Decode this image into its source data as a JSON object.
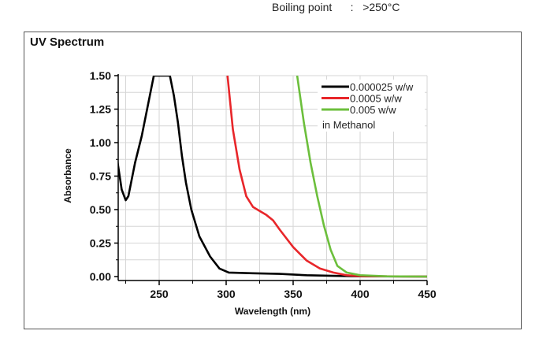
{
  "header_text": {
    "label": "Boiling point",
    "sep": ":",
    "value": ">250°C"
  },
  "chart_data": {
    "type": "line",
    "title": "UV Spectrum",
    "xlabel": "Wavelength (nm)",
    "ylabel": "Absorbance",
    "xlim": [
      217,
      450
    ],
    "ylim": [
      0,
      1.5
    ],
    "xticks": [
      "250",
      "300",
      "350",
      "400",
      "450"
    ],
    "xtick_values": [
      250,
      300,
      350,
      400,
      450
    ],
    "yticks": [
      "0.00",
      "0.25",
      "0.50",
      "0.75",
      "1.00",
      "1.25",
      "1.50"
    ],
    "ytick_values": [
      0,
      0.25,
      0.5,
      0.75,
      1,
      1.25,
      1.5
    ],
    "grid": true,
    "legend_position": "top-right",
    "legend_note": "in Methanol",
    "series": [
      {
        "name": "0.000025 w/w",
        "color": "#000000",
        "points": [
          [
            217,
            1.15
          ],
          [
            219,
            0.85
          ],
          [
            222,
            0.65
          ],
          [
            225,
            0.57
          ],
          [
            227,
            0.6
          ],
          [
            232,
            0.85
          ],
          [
            237,
            1.05
          ],
          [
            243,
            1.35
          ],
          [
            246,
            1.5
          ],
          [
            258,
            1.5
          ],
          [
            261,
            1.35
          ],
          [
            264,
            1.15
          ],
          [
            267,
            0.9
          ],
          [
            270,
            0.7
          ],
          [
            274,
            0.5
          ],
          [
            280,
            0.3
          ],
          [
            288,
            0.15
          ],
          [
            295,
            0.06
          ],
          [
            302,
            0.03
          ],
          [
            320,
            0.025
          ],
          [
            340,
            0.02
          ],
          [
            360,
            0.01
          ],
          [
            380,
            0.005
          ],
          [
            400,
            0.002
          ],
          [
            450,
            0
          ]
        ]
      },
      {
        "name": "0.0005 w/w",
        "color": "#e8262a",
        "points": [
          [
            301,
            1.5
          ],
          [
            305,
            1.1
          ],
          [
            310,
            0.8
          ],
          [
            315,
            0.6
          ],
          [
            320,
            0.52
          ],
          [
            325,
            0.49
          ],
          [
            330,
            0.46
          ],
          [
            335,
            0.42
          ],
          [
            340,
            0.35
          ],
          [
            350,
            0.22
          ],
          [
            360,
            0.12
          ],
          [
            370,
            0.06
          ],
          [
            380,
            0.03
          ],
          [
            390,
            0.01
          ],
          [
            400,
            0.003
          ],
          [
            450,
            0
          ]
        ]
      },
      {
        "name": "0.005 w/w",
        "color": "#6cbf3c",
        "points": [
          [
            353,
            1.5
          ],
          [
            358,
            1.15
          ],
          [
            363,
            0.85
          ],
          [
            368,
            0.6
          ],
          [
            373,
            0.38
          ],
          [
            378,
            0.2
          ],
          [
            383,
            0.08
          ],
          [
            390,
            0.03
          ],
          [
            400,
            0.01
          ],
          [
            420,
            0.002
          ],
          [
            450,
            0
          ]
        ]
      }
    ]
  }
}
